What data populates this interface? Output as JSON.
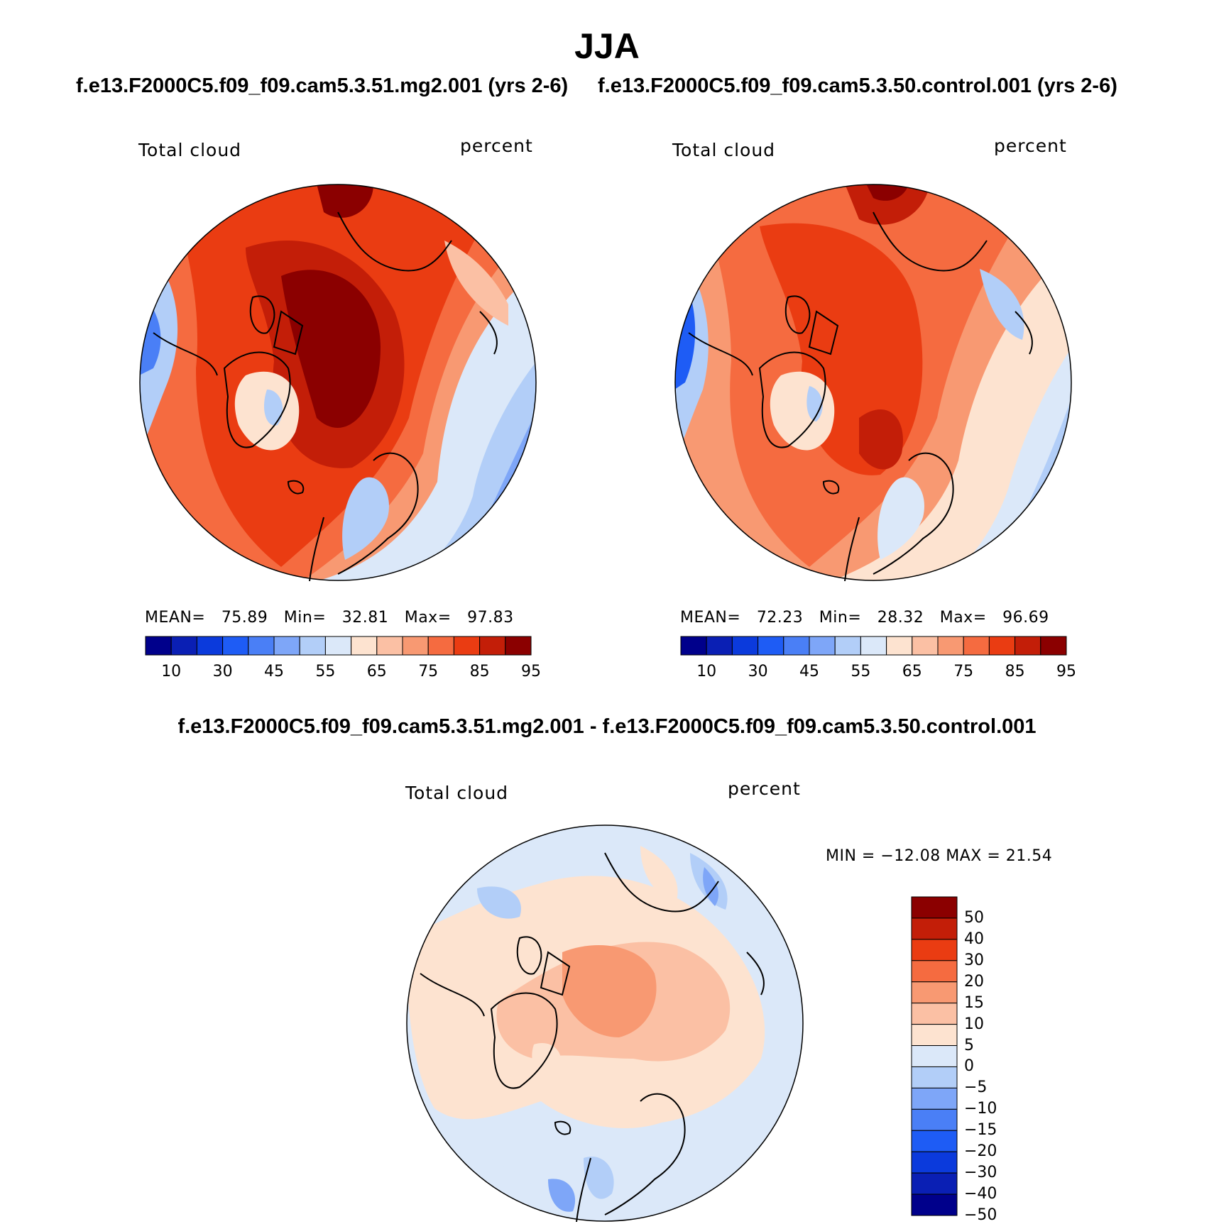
{
  "figure": {
    "title": "JJA",
    "diff_title": "f.e13.F2000C5.f09_f09.cam5.3.51.mg2.001 - f.e13.F2000C5.f09_f09.cam5.3.50.control.001"
  },
  "panels": [
    {
      "case_title": "f.e13.F2000C5.f09_f09.cam5.3.51.mg2.001 (yrs 2-6)",
      "left_label": "Total cloud",
      "right_label": "percent",
      "stats": {
        "mean_label": "MEAN=",
        "mean": "75.89",
        "min_label": "Min=",
        "min": "32.81",
        "max_label": "Max=",
        "max": "97.83"
      }
    },
    {
      "case_title": "f.e13.F2000C5.f09_f09.cam5.3.50.control.001 (yrs 2-6)",
      "left_label": "Total cloud",
      "right_label": "percent",
      "stats": {
        "mean_label": "MEAN=",
        "mean": "72.23",
        "min_label": "Min=",
        "min": "28.32",
        "max_label": "Max=",
        "max": "96.69"
      }
    },
    {
      "left_label": "Total cloud",
      "right_label": "percent",
      "stats": {
        "text": "MIN = −12.08 MAX =   21.54"
      }
    }
  ],
  "colorbars": {
    "absolute": {
      "colors": [
        "#00008b",
        "#0a1fb4",
        "#0b3adc",
        "#1e5cf5",
        "#4a7ff6",
        "#7ea6f8",
        "#b2cef8",
        "#dbe8f9",
        "#fde3d0",
        "#fbc0a4",
        "#f89972",
        "#f56b40",
        "#ea3c12",
        "#c31e08",
        "#8b0000"
      ],
      "tick_labels": [
        "10",
        "30",
        "45",
        "55",
        "65",
        "75",
        "85",
        "95"
      ]
    },
    "difference": {
      "colors": [
        "#8b0000",
        "#c31e08",
        "#ea3c12",
        "#f56b40",
        "#f89972",
        "#fbc0a4",
        "#fde3d0",
        "#dbe8f9",
        "#b2cef8",
        "#7ea6f8",
        "#4a7ff6",
        "#1e5cf5",
        "#0b3adc",
        "#0a1fb4",
        "#00008b"
      ],
      "tick_labels": [
        "50",
        "40",
        "30",
        "20",
        "15",
        "10",
        "5",
        "0",
        "−5",
        "−10",
        "−15",
        "−20",
        "−30",
        "−40",
        "−50"
      ]
    }
  }
}
